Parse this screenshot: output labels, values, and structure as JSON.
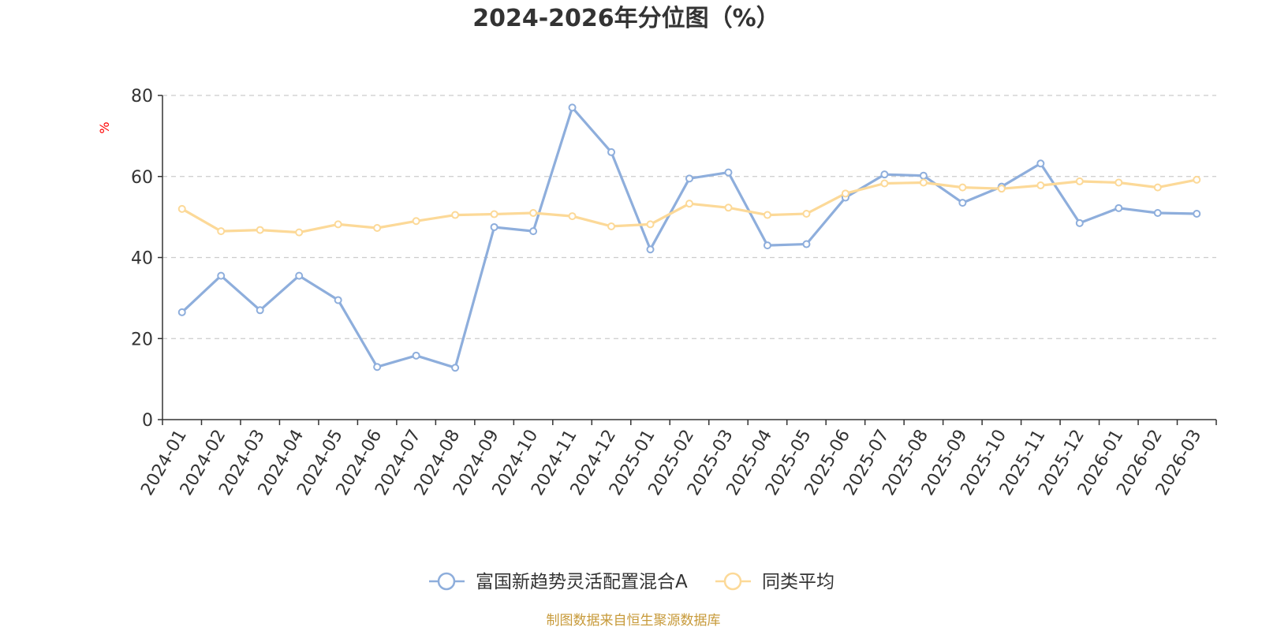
{
  "chart_data": {
    "type": "line",
    "title": "2024-2026年分位图（%）",
    "ylabel": "%",
    "xlabel": "",
    "ylim": [
      0,
      80
    ],
    "yticks": [
      0,
      20,
      40,
      60,
      80
    ],
    "grid": true,
    "legend_position": "bottom",
    "categories": [
      "2024-01",
      "2024-02",
      "2024-03",
      "2024-04",
      "2024-05",
      "2024-06",
      "2024-07",
      "2024-08",
      "2024-09",
      "2024-10",
      "2024-11",
      "2024-12",
      "2025-01",
      "2025-02",
      "2025-03",
      "2025-04",
      "2025-05",
      "2025-06",
      "2025-07",
      "2025-08",
      "2025-09",
      "2025-10",
      "2025-11",
      "2025-12",
      "2026-01",
      "2026-02",
      "2026-03"
    ],
    "series": [
      {
        "name": "富国新趋势灵活配置混合A",
        "color": "#8eaedc",
        "values": [
          26.5,
          35.5,
          27.0,
          35.5,
          29.5,
          13.0,
          15.8,
          12.8,
          47.5,
          46.5,
          77.0,
          66.0,
          42.0,
          59.5,
          61.0,
          43.0,
          43.3,
          54.8,
          60.5,
          60.2,
          53.5,
          57.5,
          63.2,
          48.5,
          52.2,
          51.0,
          50.8
        ]
      },
      {
        "name": "同类平均",
        "color": "#fcd998",
        "values": [
          52.0,
          46.5,
          46.8,
          46.2,
          48.2,
          47.3,
          49.0,
          50.5,
          50.7,
          51.0,
          50.2,
          47.7,
          48.2,
          53.3,
          52.3,
          50.5,
          50.8,
          55.8,
          58.3,
          58.5,
          57.3,
          57.0,
          57.8,
          58.8,
          58.5,
          57.3,
          59.2
        ]
      }
    ],
    "source": "制图数据来自恒生聚源数据库",
    "source_color": "#c79a3a",
    "unit_color": "#ff0000",
    "axis_color": "#333333",
    "grid_color": "#cccccc"
  }
}
